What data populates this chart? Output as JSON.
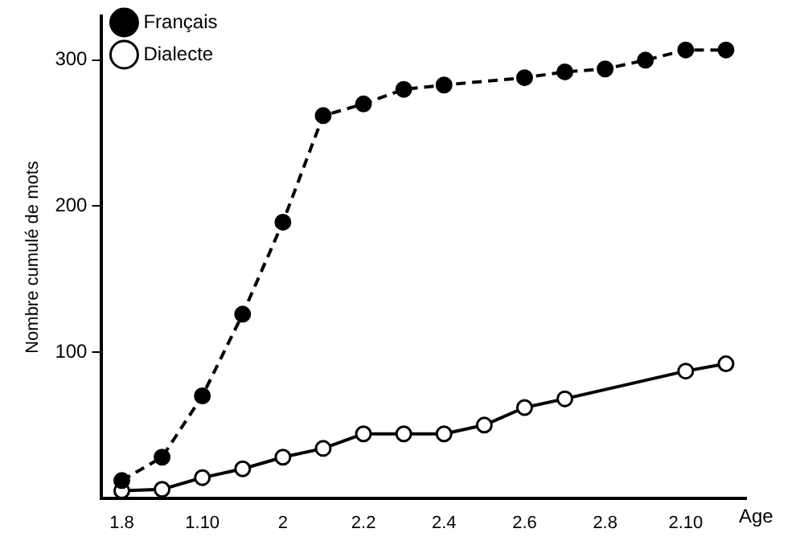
{
  "chart_data": {
    "type": "line",
    "xlabel": "Age",
    "ylabel": "Nombre cumulé de mots",
    "categories": [
      "1.8",
      null,
      "1.10",
      null,
      "2",
      null,
      "2.2",
      null,
      "2.4",
      null,
      "2.6",
      null,
      "2.8",
      null,
      "2.10",
      null
    ],
    "series": [
      {
        "name": "Français",
        "color": "#000000",
        "line_style": "dashed",
        "marker": "circle",
        "values": [
          12,
          28,
          70,
          126,
          189,
          262,
          270,
          280,
          283,
          null,
          288,
          292,
          294,
          300,
          307,
          307
        ]
      },
      {
        "name": "Dialecte",
        "color": "#000000",
        "line_style": "solid",
        "marker": "circle",
        "values": [
          5,
          6,
          14,
          20,
          28,
          34,
          44,
          44,
          44,
          50,
          62,
          68,
          null,
          null,
          87,
          92
        ]
      }
    ],
    "ylim": [
      0,
      330
    ],
    "yticks": [
      100,
      200,
      300
    ],
    "grid": false,
    "legend": "top left"
  }
}
